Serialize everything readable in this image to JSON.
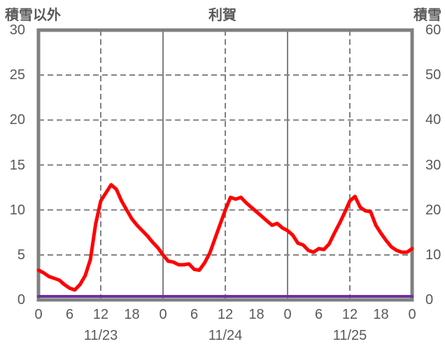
{
  "header": {
    "left_axis_label": "積雪以外",
    "title": "利賀",
    "right_axis_label": "積雪"
  },
  "colors": {
    "frame": "#808080",
    "grid": "#808080",
    "tick_text": "#595959",
    "series_main": "#ff0000",
    "series_snow": "#7030a0",
    "background": "#ffffff"
  },
  "chart_data": {
    "type": "line",
    "title": "利賀",
    "left_axis": {
      "label": "積雪以外",
      "min": 0,
      "max": 30,
      "tick_labels": [
        "30",
        "25",
        "20",
        "15",
        "10",
        "5",
        "0"
      ]
    },
    "right_axis": {
      "label": "積雪",
      "min": 0,
      "max": 60,
      "tick_labels": [
        "60",
        "50",
        "40",
        "30",
        "20",
        "10",
        "0"
      ]
    },
    "x_axis": {
      "total_hours": 72,
      "hour_tick_labels": [
        "0",
        "6",
        "12",
        "18",
        "0",
        "6",
        "12",
        "18",
        "0",
        "6",
        "12",
        "18",
        "0"
      ],
      "date_labels": [
        "11/23",
        "11/24",
        "11/25"
      ],
      "solid_line_hours": [
        24,
        48
      ],
      "dashed_line_hours": [
        12,
        36,
        60
      ]
    },
    "grid": {
      "horizontal_dashed_left_values": [
        5,
        10,
        15,
        20,
        25
      ]
    },
    "legend": "none",
    "series": [
      {
        "name": "積雪以外",
        "axis": "left",
        "color": "#ff0000",
        "x_start_hour": 0,
        "x_step_hours": 1,
        "values": [
          3.3,
          3.0,
          2.6,
          2.4,
          2.2,
          1.7,
          1.3,
          1.1,
          1.7,
          2.7,
          4.5,
          8.4,
          11.0,
          11.9,
          12.8,
          12.3,
          11.0,
          10.0,
          9.0,
          8.3,
          7.7,
          7.1,
          6.4,
          5.8,
          5.0,
          4.3,
          4.2,
          3.9,
          3.9,
          4.0,
          3.4,
          3.3,
          4.1,
          5.2,
          6.8,
          8.4,
          10.0,
          11.4,
          11.2,
          11.4,
          10.8,
          10.3,
          9.8,
          9.3,
          8.8,
          8.3,
          8.5,
          8.0,
          7.7,
          7.2,
          6.3,
          6.1,
          5.5,
          5.3,
          5.7,
          5.6,
          6.2,
          7.4,
          8.5,
          9.7,
          11.0,
          11.5,
          10.3,
          9.9,
          9.8,
          8.3,
          7.4,
          6.6,
          5.9,
          5.5,
          5.3,
          5.3,
          5.7
        ]
      },
      {
        "name": "積雪",
        "axis": "right",
        "color": "#7030a0",
        "x_start_hour": 0,
        "x_step_hours": 72,
        "values": [
          0,
          0
        ]
      }
    ]
  }
}
